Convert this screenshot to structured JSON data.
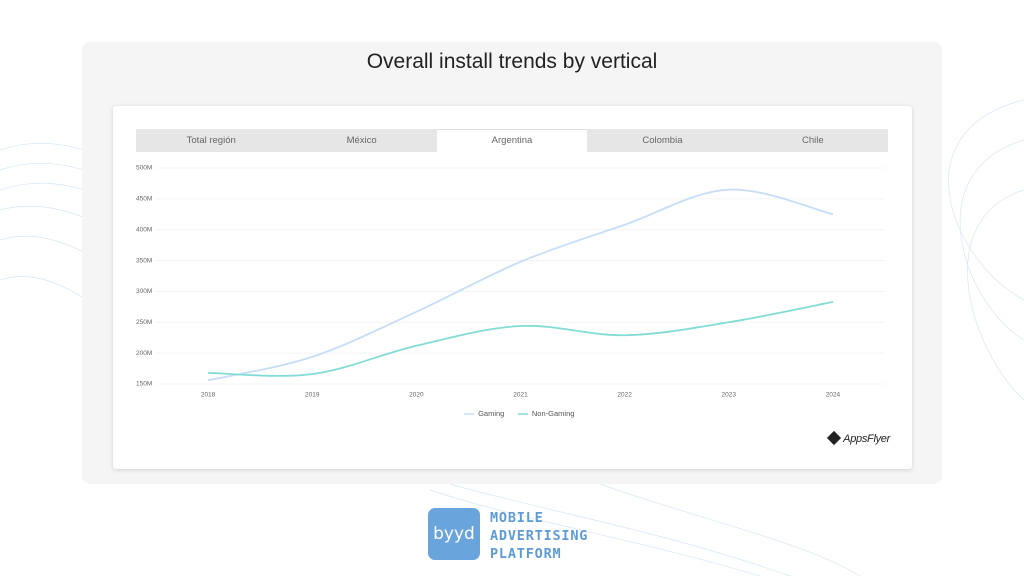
{
  "title": "Overall install trends by vertical",
  "tabs": [
    "Total región",
    "México",
    "Argentina",
    "Colombia",
    "Chile"
  ],
  "source_logo": "AppsFlyer",
  "footer": {
    "logo": "byyd",
    "tagline": [
      "MOBILE",
      "ADVERTISING",
      "PLATFORM"
    ]
  },
  "chart_data": {
    "type": "line",
    "categories": [
      "2018",
      "2019",
      "2020",
      "2021",
      "2022",
      "2023",
      "2024"
    ],
    "series": [
      {
        "name": "Gaming",
        "color": "#c6ddf5",
        "values": [
          156,
          194,
          267,
          348,
          408,
          465,
          425
        ]
      },
      {
        "name": "Non-Gaming",
        "color": "#82dcd5",
        "values": [
          168,
          166,
          212,
          244,
          229,
          250,
          283
        ]
      }
    ],
    "ylim": [
      150,
      500
    ],
    "yticks": [
      {
        "value": 150,
        "label": "150M"
      },
      {
        "value": 200,
        "label": "200M"
      },
      {
        "value": 250,
        "label": "250M"
      },
      {
        "value": 300,
        "label": "300M"
      },
      {
        "value": 350,
        "label": "350M"
      },
      {
        "value": 400,
        "label": "400M"
      },
      {
        "value": 450,
        "label": "450M"
      },
      {
        "value": 500,
        "label": "500M"
      }
    ],
    "grid": true,
    "legend": "bottom"
  }
}
